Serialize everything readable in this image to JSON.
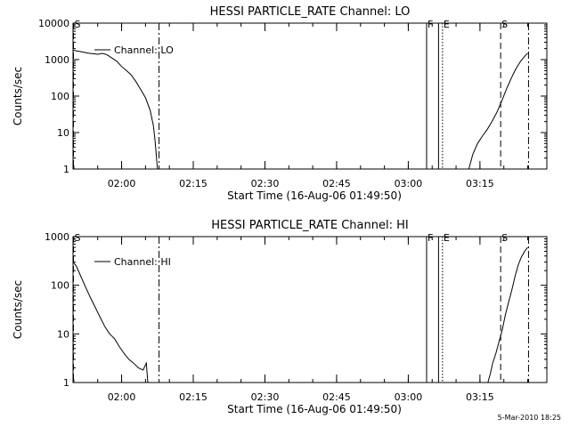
{
  "footer_timestamp": "5-Mar-2010 18:25",
  "chart_data": [
    {
      "type": "line",
      "title": "HESSI PARTICLE_RATE Channel: LO",
      "xlabel": "Start Time (16-Aug-06 01:49:50)",
      "ylabel": "Counts/sec",
      "yscale": "log",
      "ylim": [
        1,
        10000
      ],
      "xlim": [
        "01:49:50",
        "03:29:00"
      ],
      "grid": false,
      "legend": {
        "entries": [
          "Channel: LO"
        ],
        "placement": "upper-left"
      },
      "yticks": [
        {
          "value": 1,
          "label": "1"
        },
        {
          "value": 10,
          "label": "10"
        },
        {
          "value": 100,
          "label": "100"
        },
        {
          "value": 1000,
          "label": "1000"
        },
        {
          "value": 10000,
          "label": "10000"
        }
      ],
      "xticks": [
        {
          "value": "02:00",
          "label": "02:00"
        },
        {
          "value": "02:15",
          "label": "02:15"
        },
        {
          "value": "02:30",
          "label": "02:30"
        },
        {
          "value": "02:45",
          "label": "02:45"
        },
        {
          "value": "03:00",
          "label": "03:00"
        },
        {
          "value": "03:15",
          "label": "03:15"
        }
      ],
      "markers": [
        {
          "time": "01:49:50",
          "label": "S",
          "style": "dashed"
        },
        {
          "time": "02:07:50",
          "label": "",
          "style": "dashdot"
        },
        {
          "time": "03:03:50",
          "label": "F",
          "style": "solid"
        },
        {
          "time": "03:06:20",
          "label": "",
          "style": "solid"
        },
        {
          "time": "03:07:10",
          "label": "E",
          "style": "dotted"
        },
        {
          "time": "03:19:20",
          "label": "S",
          "style": "dashed"
        },
        {
          "time": "03:25:10",
          "label": "",
          "style": "dashdot"
        }
      ],
      "series": [
        {
          "name": "Channel: LO",
          "segments": [
            {
              "x": [
                "01:49:50",
                "01:51:00",
                "01:52:00",
                "01:53:00",
                "01:54:00",
                "01:55:00",
                "01:56:00",
                "01:57:00",
                "01:58:00",
                "01:59:00",
                "02:00:00",
                "02:01:00",
                "02:02:00",
                "02:03:00",
                "02:04:00",
                "02:05:00",
                "02:06:00",
                "02:06:40",
                "02:07:00",
                "02:07:30"
              ],
              "y": [
                1800,
                1700,
                1600,
                1500,
                1450,
                1400,
                1480,
                1350,
                1100,
                900,
                650,
                500,
                380,
                250,
                150,
                90,
                40,
                15,
                6,
                1
              ]
            },
            {
              "x": [
                "03:12:40",
                "03:13:30",
                "03:14:30",
                "03:15:30",
                "03:16:30",
                "03:17:30",
                "03:18:30",
                "03:19:30",
                "03:20:30",
                "03:21:30",
                "03:22:30",
                "03:23:30",
                "03:24:30",
                "03:25:00"
              ],
              "y": [
                1,
                2.5,
                5,
                8,
                12,
                20,
                35,
                70,
                150,
                300,
                550,
                900,
                1300,
                1500
              ]
            }
          ]
        }
      ]
    },
    {
      "type": "line",
      "title": "HESSI PARTICLE_RATE Channel: HI",
      "xlabel": "Start Time (16-Aug-06 01:49:50)",
      "ylabel": "Counts/sec",
      "yscale": "log",
      "ylim": [
        1,
        1000
      ],
      "xlim": [
        "01:49:50",
        "03:29:00"
      ],
      "grid": false,
      "legend": {
        "entries": [
          "Channel: HI"
        ],
        "placement": "upper-left"
      },
      "yticks": [
        {
          "value": 1,
          "label": "1"
        },
        {
          "value": 10,
          "label": "10"
        },
        {
          "value": 100,
          "label": "100"
        },
        {
          "value": 1000,
          "label": "1000"
        }
      ],
      "xticks": [
        {
          "value": "02:00",
          "label": "02:00"
        },
        {
          "value": "02:15",
          "label": "02:15"
        },
        {
          "value": "02:30",
          "label": "02:30"
        },
        {
          "value": "02:45",
          "label": "02:45"
        },
        {
          "value": "03:00",
          "label": "03:00"
        },
        {
          "value": "03:15",
          "label": "03:15"
        }
      ],
      "markers": [
        {
          "time": "01:49:50",
          "label": "S",
          "style": "dashed"
        },
        {
          "time": "02:07:50",
          "label": "",
          "style": "dashdot"
        },
        {
          "time": "03:03:50",
          "label": "F",
          "style": "solid"
        },
        {
          "time": "03:06:20",
          "label": "",
          "style": "solid"
        },
        {
          "time": "03:07:10",
          "label": "E",
          "style": "dotted"
        },
        {
          "time": "03:19:20",
          "label": "S",
          "style": "dashed"
        },
        {
          "time": "03:25:10",
          "label": "",
          "style": "dashdot"
        }
      ],
      "series": [
        {
          "name": "Channel: HI",
          "segments": [
            {
              "x": [
                "01:49:50",
                "01:50:30",
                "01:51:30",
                "01:52:30",
                "01:53:30",
                "01:54:30",
                "01:55:30",
                "01:56:30",
                "01:57:30",
                "01:58:30",
                "01:59:30",
                "02:00:30",
                "02:01:30",
                "02:02:30",
                "02:03:30",
                "02:04:30",
                "02:05:10",
                "02:05:30"
              ],
              "y": [
                300,
                250,
                150,
                90,
                55,
                35,
                22,
                14,
                10,
                8,
                5.5,
                4,
                3,
                2.5,
                2,
                1.8,
                2.5,
                1
              ]
            },
            {
              "x": [
                "03:16:40",
                "03:17:10",
                "03:17:40",
                "03:18:20",
                "03:19:00",
                "03:19:40",
                "03:20:20",
                "03:21:00",
                "03:21:40",
                "03:22:20",
                "03:23:00",
                "03:23:40",
                "03:24:20",
                "03:25:00"
              ],
              "y": [
                1,
                1.5,
                2.5,
                4,
                7,
                12,
                25,
                45,
                80,
                150,
                260,
                380,
                500,
                600
              ]
            }
          ]
        }
      ]
    }
  ]
}
